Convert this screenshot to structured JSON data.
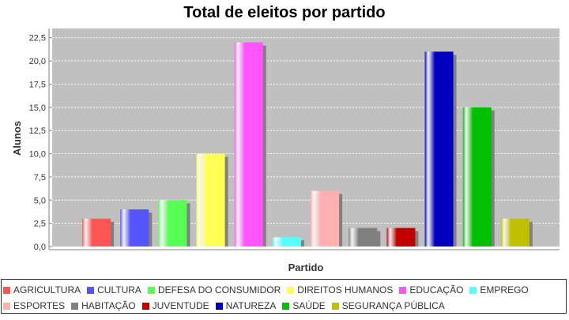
{
  "chart_data": {
    "type": "bar",
    "title": "Total de eleitos por partido",
    "xlabel": "Partido",
    "ylabel": "Alunos",
    "ylim": [
      0,
      23.5
    ],
    "yticks": [
      "0,0",
      "2,5",
      "5,0",
      "7,5",
      "10,0",
      "12,5",
      "15,0",
      "17,5",
      "20,0",
      "22,5"
    ],
    "grid": true,
    "legend_position": "bottom",
    "series": [
      {
        "name": "AGRICULTURA",
        "value": 3,
        "color": "#ff5555"
      },
      {
        "name": "CULTURA",
        "value": 4,
        "color": "#5555ff"
      },
      {
        "name": "DEFESA DO CONSUMIDOR",
        "value": 5,
        "color": "#55ff55"
      },
      {
        "name": "DIREITOS HUMANOS",
        "value": 10,
        "color": "#ffff55"
      },
      {
        "name": "EDUCAÇÃO",
        "value": 22,
        "color": "#ff55ff"
      },
      {
        "name": "EMPREGO",
        "value": 1,
        "color": "#55ffff"
      },
      {
        "name": "ESPORTES",
        "value": 6,
        "color": "#ffafaf"
      },
      {
        "name": "HABITAÇÃO",
        "value": 2,
        "color": "#808080"
      },
      {
        "name": "JUVENTUDE",
        "value": 2,
        "color": "#c00000"
      },
      {
        "name": "NATUREZA",
        "value": 21,
        "color": "#0000c0"
      },
      {
        "name": "SAÚDE",
        "value": 15,
        "color": "#00c000"
      },
      {
        "name": "SEGURANÇA PÚBLICA",
        "value": 3,
        "color": "#c0c000"
      }
    ],
    "colors": {
      "plot_background": "#c0c0c0",
      "grid": "#ffffff",
      "shadow": "#808080"
    }
  }
}
